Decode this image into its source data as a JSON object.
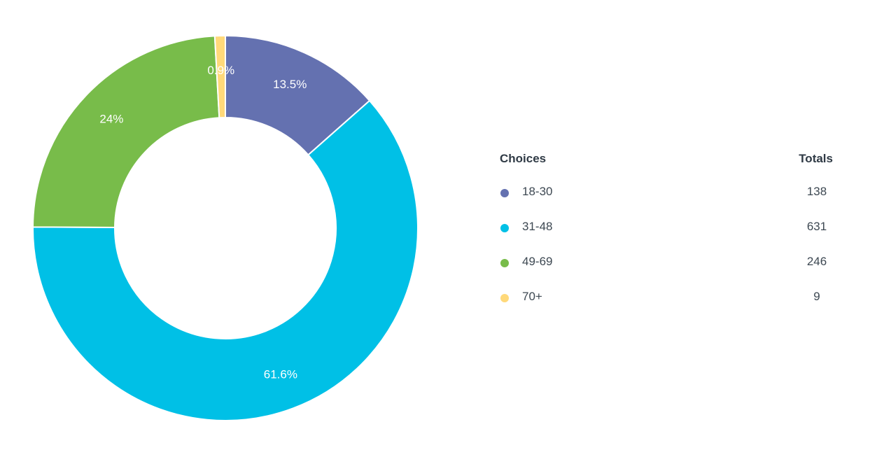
{
  "chart_data": {
    "type": "pie",
    "donut": true,
    "categories": [
      "18-30",
      "31-48",
      "49-69",
      "70+"
    ],
    "values": [
      138,
      631,
      246,
      9
    ],
    "percent_labels": [
      "13.5%",
      "61.6%",
      "24%",
      "0.9%"
    ],
    "colors": [
      "#6471b0",
      "#00c0e6",
      "#78bc4a",
      "#ffd97a"
    ],
    "legend_placement": "right"
  },
  "legend": {
    "header_choices": "Choices",
    "header_totals": "Totals",
    "rows": [
      {
        "label": "18-30",
        "total": "138"
      },
      {
        "label": "31-48",
        "total": "631"
      },
      {
        "label": "49-69",
        "total": "246"
      },
      {
        "label": "70+",
        "total": "9"
      }
    ]
  }
}
